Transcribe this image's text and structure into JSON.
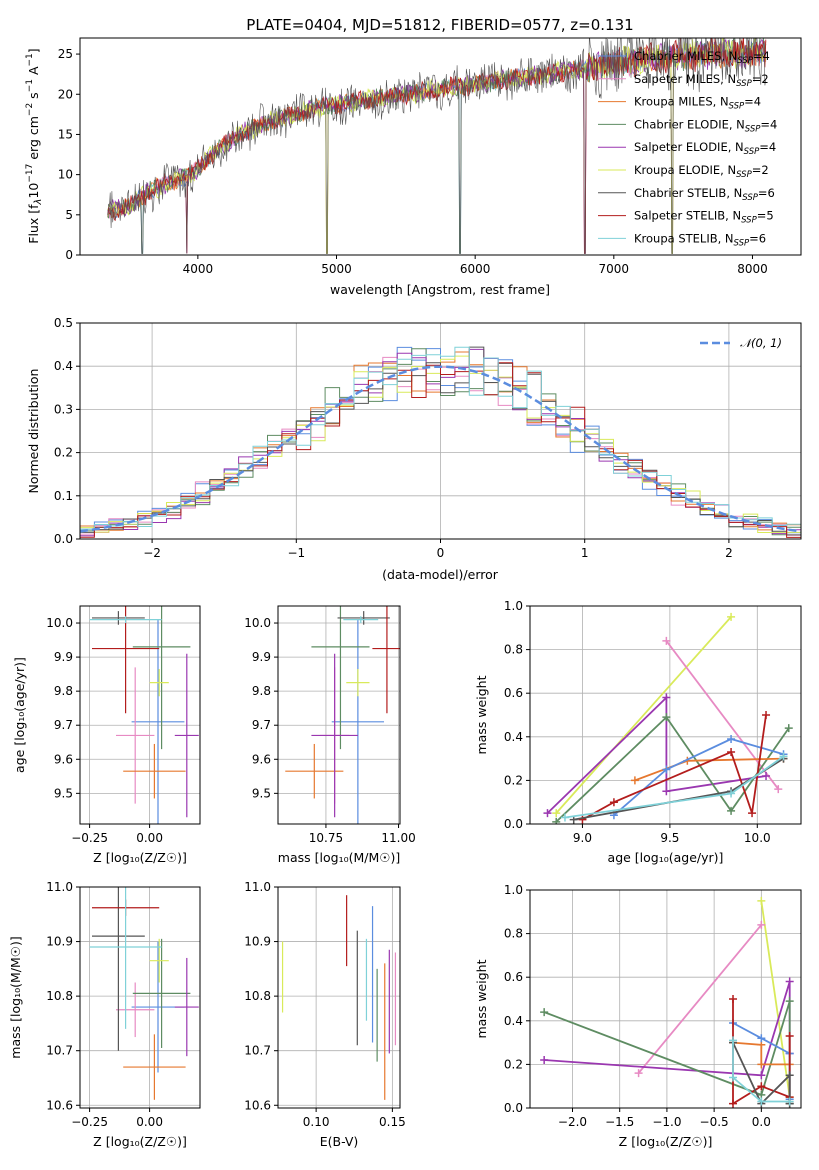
{
  "chart_data": [
    {
      "type": "line",
      "title": "PLATE=0404, MJD=51812, FIBERID=0577, z=0.131",
      "xlabel": "wavelength [Angstrom, rest frame]",
      "ylabel": "Flux [f_λ10⁻¹⁷ erg cm⁻² s⁻¹ A⁻¹]",
      "xlim": [
        3150,
        8350
      ],
      "ylim": [
        0,
        27
      ],
      "xticks": [
        "4000",
        "5000",
        "6000",
        "7000",
        "8000"
      ],
      "yticks": [
        "0",
        "5",
        "10",
        "15",
        "20",
        "25"
      ],
      "grid": false,
      "legend_position": "upper right",
      "series": [
        {
          "name": "Chabrier MILES, N_SSP=4",
          "color": "#5b8ddf"
        },
        {
          "name": "Salpeter MILES, N_SSP=2",
          "color": "#e78ac3"
        },
        {
          "name": "Kroupa MILES, N_SSP=4",
          "color": "#e6782f"
        },
        {
          "name": "Chabrier ELODIE, N_SSP=4",
          "color": "#5e8c62"
        },
        {
          "name": "Salpeter ELODIE, N_SSP=4",
          "color": "#9a37b0"
        },
        {
          "name": "Kroupa ELODIE, N_SSP=2",
          "color": "#d9ea5a"
        },
        {
          "name": "Chabrier STELIB, N_SSP=6",
          "color": "#555555"
        },
        {
          "name": "Salpeter STELIB, N_SSP=5",
          "color": "#b31d1d"
        },
        {
          "name": "Kroupa STELIB, N_SSP=6",
          "color": "#7fd1d8"
        }
      ],
      "spectrum_trend": {
        "x": [
          3350,
          3500,
          3650,
          3800,
          3950,
          4100,
          4300,
          4500,
          4700,
          4900,
          5100,
          5300,
          5500,
          5700,
          5900,
          6100,
          6300,
          6500,
          6700,
          6900,
          7100,
          7300,
          7500,
          7700,
          7900,
          8100
        ],
        "y": [
          5.5,
          6.0,
          8.0,
          9.0,
          10.0,
          12.5,
          15.0,
          16.5,
          17.5,
          18.5,
          19.0,
          19.5,
          20.0,
          20.5,
          21.0,
          21.5,
          22.0,
          22.5,
          23.0,
          23.5,
          24.0,
          24.5,
          24.8,
          25.0,
          25.2,
          25.3
        ]
      },
      "rest_frame_features": {
        "x": [
          3600,
          3920,
          4930,
          5890,
          6790,
          7420
        ]
      }
    },
    {
      "type": "bar",
      "xlabel": "(data-model)/error",
      "ylabel": "Normed distribution",
      "xlim": [
        -2.5,
        2.5
      ],
      "ylim": [
        0,
        0.5
      ],
      "xticks": [
        "−2",
        "−1",
        "0",
        "1",
        "2"
      ],
      "yticks": [
        "0.0",
        "0.1",
        "0.2",
        "0.3",
        "0.4",
        "0.5"
      ],
      "grid": true,
      "legend_position": "upper right",
      "reference_curve": {
        "name": "𝒩(0, 1)",
        "color": "#5b8ddf",
        "style": "dashed"
      }
    },
    {
      "type": "scatter",
      "xlabel": "Z [log₁₀(Z/Z☉)]",
      "ylabel": "age  [log₁₀(age/yr)]",
      "xlim": [
        -0.29,
        0.21
      ],
      "ylim": [
        9.41,
        10.05
      ],
      "xticks": [
        "−0.25",
        "0.00"
      ],
      "yticks": [
        "9.5",
        "9.6",
        "9.7",
        "9.8",
        "9.9",
        "10.0"
      ],
      "grid": true,
      "points": [
        {
          "color": "#5b8ddf",
          "x": 0.035,
          "y": 9.71,
          "xerr": 0.11,
          "yerr": 0.3
        },
        {
          "color": "#e78ac3",
          "x": -0.06,
          "y": 9.67,
          "xerr": 0.08,
          "yerr": 0.2
        },
        {
          "color": "#e6782f",
          "x": 0.02,
          "y": 9.565,
          "xerr": 0.13,
          "yerr": 0.08
        },
        {
          "color": "#5e8c62",
          "x": 0.05,
          "y": 9.93,
          "xerr": 0.12,
          "yerr": 0.3
        },
        {
          "color": "#9a37b0",
          "x": 0.155,
          "y": 9.67,
          "xerr": 0.05,
          "yerr": 0.24
        },
        {
          "color": "#d9ea5a",
          "x": 0.04,
          "y": 9.825,
          "xerr": 0.04,
          "yerr": 0.04
        },
        {
          "color": "#555555",
          "x": -0.13,
          "y": 10.015,
          "xerr": 0.11,
          "yerr": 0.02
        },
        {
          "color": "#b31d1d",
          "x": -0.1,
          "y": 9.925,
          "xerr": 0.14,
          "yerr": 0.19
        },
        {
          "color": "#7fd1d8",
          "x": -0.1,
          "y": 10.01,
          "xerr": 0.15,
          "yerr": 0.01
        }
      ]
    },
    {
      "type": "scatter",
      "xlabel": "mass [log₁₀(M/M☉)]",
      "ylabel": "",
      "xlim": [
        10.585,
        11.005
      ],
      "ylim": [
        9.41,
        10.05
      ],
      "xticks": [
        "10.75",
        "11.00"
      ],
      "yticks": [
        "9.5",
        "9.6",
        "9.7",
        "9.8",
        "9.9",
        "10.0"
      ],
      "grid": true,
      "points": [
        {
          "color": "#5b8ddf",
          "x": 10.86,
          "y": 9.71,
          "xerr": 0.09,
          "yerr": 0.3
        },
        {
          "color": "#e78ac3",
          "x": 10.78,
          "y": 9.67,
          "xerr": 0.05,
          "yerr": 0.2
        },
        {
          "color": "#e6782f",
          "x": 10.71,
          "y": 9.565,
          "xerr": 0.1,
          "yerr": 0.08
        },
        {
          "color": "#5e8c62",
          "x": 10.8,
          "y": 9.93,
          "xerr": 0.1,
          "yerr": 0.3
        },
        {
          "color": "#9a37b0",
          "x": 10.78,
          "y": 9.67,
          "xerr": 0.08,
          "yerr": 0.24
        },
        {
          "color": "#d9ea5a",
          "x": 10.86,
          "y": 9.825,
          "xerr": 0.04,
          "yerr": 0.04
        },
        {
          "color": "#555555",
          "x": 10.88,
          "y": 10.015,
          "xerr": 0.09,
          "yerr": 0.02
        },
        {
          "color": "#b31d1d",
          "x": 10.96,
          "y": 9.925,
          "xerr": 0.05,
          "yerr": 0.19
        },
        {
          "color": "#7fd1d8",
          "x": 10.87,
          "y": 10.01,
          "xerr": 0.06,
          "yerr": 0.01
        }
      ]
    },
    {
      "type": "line",
      "xlabel": "age  [log₁₀(age/yr)]",
      "ylabel": "mass weight",
      "xlim": [
        8.7,
        10.25
      ],
      "ylim": [
        0,
        1.0
      ],
      "xticks": [
        "9.0",
        "9.5",
        "10.0"
      ],
      "yticks": [
        "0.0",
        "0.2",
        "0.4",
        "0.6",
        "0.8",
        "1.0"
      ],
      "grid": true,
      "series": [
        {
          "color": "#d9ea5a",
          "x": [
            8.85,
            9.85
          ],
          "y": [
            0.05,
            0.95
          ]
        },
        {
          "color": "#e78ac3",
          "x": [
            9.48,
            10.12
          ],
          "y": [
            0.84,
            0.16
          ]
        },
        {
          "color": "#9a37b0",
          "x": [
            8.8,
            9.48,
            9.48,
            10.05
          ],
          "y": [
            0.05,
            0.58,
            0.15,
            0.22
          ]
        },
        {
          "color": "#5e8c62",
          "x": [
            8.85,
            9.48,
            9.85,
            10.18
          ],
          "y": [
            0.01,
            0.49,
            0.06,
            0.44
          ]
        },
        {
          "color": "#e6782f",
          "x": [
            9.3,
            9.6,
            10.15
          ],
          "y": [
            0.2,
            0.29,
            0.3
          ]
        },
        {
          "color": "#5b8ddf",
          "x": [
            9.18,
            9.48,
            9.85,
            10.15
          ],
          "y": [
            0.04,
            0.25,
            0.39,
            0.32
          ]
        },
        {
          "color": "#b31d1d",
          "x": [
            9.0,
            9.18,
            9.85,
            9.97,
            10.05
          ],
          "y": [
            0.02,
            0.1,
            0.33,
            0.05,
            0.5
          ]
        },
        {
          "color": "#555555",
          "x": [
            8.95,
            9.85,
            10.15
          ],
          "y": [
            0.02,
            0.15,
            0.3
          ]
        },
        {
          "color": "#7fd1d8",
          "x": [
            8.9,
            9.85,
            10.15
          ],
          "y": [
            0.03,
            0.14,
            0.31
          ]
        }
      ]
    },
    {
      "type": "scatter",
      "xlabel": "Z [log₁₀(Z/Z☉)]",
      "ylabel": "mass [log₁₀(M/M☉)]",
      "xlim": [
        -0.29,
        0.21
      ],
      "ylim": [
        10.595,
        11.0
      ],
      "xticks": [
        "−0.25",
        "0.00"
      ],
      "yticks": [
        "10.6",
        "10.7",
        "10.8",
        "10.9",
        "11.0"
      ],
      "grid": true,
      "points": [
        {
          "color": "#5b8ddf",
          "x": 0.035,
          "y": 10.78,
          "xerr": 0.11,
          "yerr": 0.12
        },
        {
          "color": "#e78ac3",
          "x": -0.06,
          "y": 10.775,
          "xerr": 0.08,
          "yerr": 0.05
        },
        {
          "color": "#e6782f",
          "x": 0.02,
          "y": 10.67,
          "xerr": 0.13,
          "yerr": 0.06
        },
        {
          "color": "#5e8c62",
          "x": 0.05,
          "y": 10.805,
          "xerr": 0.12,
          "yerr": 0.1
        },
        {
          "color": "#9a37b0",
          "x": 0.155,
          "y": 10.78,
          "xerr": 0.05,
          "yerr": 0.09
        },
        {
          "color": "#d9ea5a",
          "x": 0.04,
          "y": 10.865,
          "xerr": 0.04,
          "yerr": 0.04
        },
        {
          "color": "#555555",
          "x": -0.13,
          "y": 10.91,
          "xerr": 0.11,
          "yerr": 0.21
        },
        {
          "color": "#b31d1d",
          "x": -0.1,
          "y": 10.962,
          "xerr": 0.14,
          "yerr": 0.015
        },
        {
          "color": "#7fd1d8",
          "x": -0.1,
          "y": 10.89,
          "xerr": 0.15,
          "yerr": 0.15
        }
      ]
    },
    {
      "type": "scatter",
      "xlabel": "E(B-V)",
      "ylabel": "",
      "xlim": [
        0.075,
        0.155
      ],
      "ylim": [
        10.595,
        11.0
      ],
      "xticks": [
        "0.10",
        "0.15"
      ],
      "yticks": [
        "10.6",
        "10.7",
        "10.8",
        "10.9",
        "11.0"
      ],
      "grid": true,
      "points": [
        {
          "color": "#5b8ddf",
          "x": 0.137,
          "y": 10.84,
          "yerr": 0.125
        },
        {
          "color": "#e78ac3",
          "x": 0.152,
          "y": 10.795,
          "yerr": 0.085
        },
        {
          "color": "#e6782f",
          "x": 0.145,
          "y": 10.735,
          "yerr": 0.125
        },
        {
          "color": "#5e8c62",
          "x": 0.14,
          "y": 10.765,
          "yerr": 0.085
        },
        {
          "color": "#9a37b0",
          "x": 0.148,
          "y": 10.79,
          "yerr": 0.095
        },
        {
          "color": "#d9ea5a",
          "x": 0.078,
          "y": 10.835,
          "yerr": 0.065
        },
        {
          "color": "#555555",
          "x": 0.127,
          "y": 10.815,
          "yerr": 0.105
        },
        {
          "color": "#b31d1d",
          "x": 0.12,
          "y": 10.92,
          "yerr": 0.065
        },
        {
          "color": "#7fd1d8",
          "x": 0.133,
          "y": 10.83,
          "yerr": 0.075
        }
      ]
    },
    {
      "type": "line",
      "xlabel": "Z [log₁₀(Z/Z☉)]",
      "ylabel": "mass weight",
      "xlim": [
        -2.45,
        0.42
      ],
      "ylim": [
        0,
        1.0
      ],
      "xticks": [
        "−2.0",
        "−1.5",
        "−1.0",
        "−0.5",
        "0.0"
      ],
      "yticks": [
        "0.0",
        "0.2",
        "0.4",
        "0.6",
        "0.8",
        "1.0"
      ],
      "grid": true,
      "series": [
        {
          "color": "#d9ea5a",
          "x": [
            0.0,
            0.3
          ],
          "y": [
            0.95,
            0.05
          ]
        },
        {
          "color": "#e78ac3",
          "x": [
            -1.3,
            0.0
          ],
          "y": [
            0.16,
            0.84
          ]
        },
        {
          "color": "#9a37b0",
          "x": [
            -2.3,
            0.0,
            0.3,
            0.3
          ],
          "y": [
            0.22,
            0.15,
            0.58,
            0.25
          ]
        },
        {
          "color": "#5e8c62",
          "x": [
            -2.3,
            0.0,
            0.3,
            0.3
          ],
          "y": [
            0.44,
            0.06,
            0.49,
            0.02
          ]
        },
        {
          "color": "#e6782f",
          "x": [
            -0.3,
            0.0,
            0.0,
            0.3
          ],
          "y": [
            0.3,
            0.29,
            0.2,
            0.2
          ]
        },
        {
          "color": "#5b8ddf",
          "x": [
            -0.3,
            0.0,
            0.3,
            0.3
          ],
          "y": [
            0.39,
            0.32,
            0.25,
            0.04
          ]
        },
        {
          "color": "#b31d1d",
          "x": [
            -0.3,
            -0.3,
            0.0,
            0.3,
            0.3
          ],
          "y": [
            0.5,
            0.02,
            0.1,
            0.05,
            0.33
          ]
        },
        {
          "color": "#555555",
          "x": [
            -0.3,
            0.0,
            0.3,
            0.3
          ],
          "y": [
            0.3,
            0.02,
            0.15,
            0.02
          ]
        },
        {
          "color": "#7fd1d8",
          "x": [
            -0.3,
            -0.3,
            0.0,
            0.3
          ],
          "y": [
            0.31,
            0.14,
            0.03,
            0.03
          ]
        }
      ]
    }
  ]
}
